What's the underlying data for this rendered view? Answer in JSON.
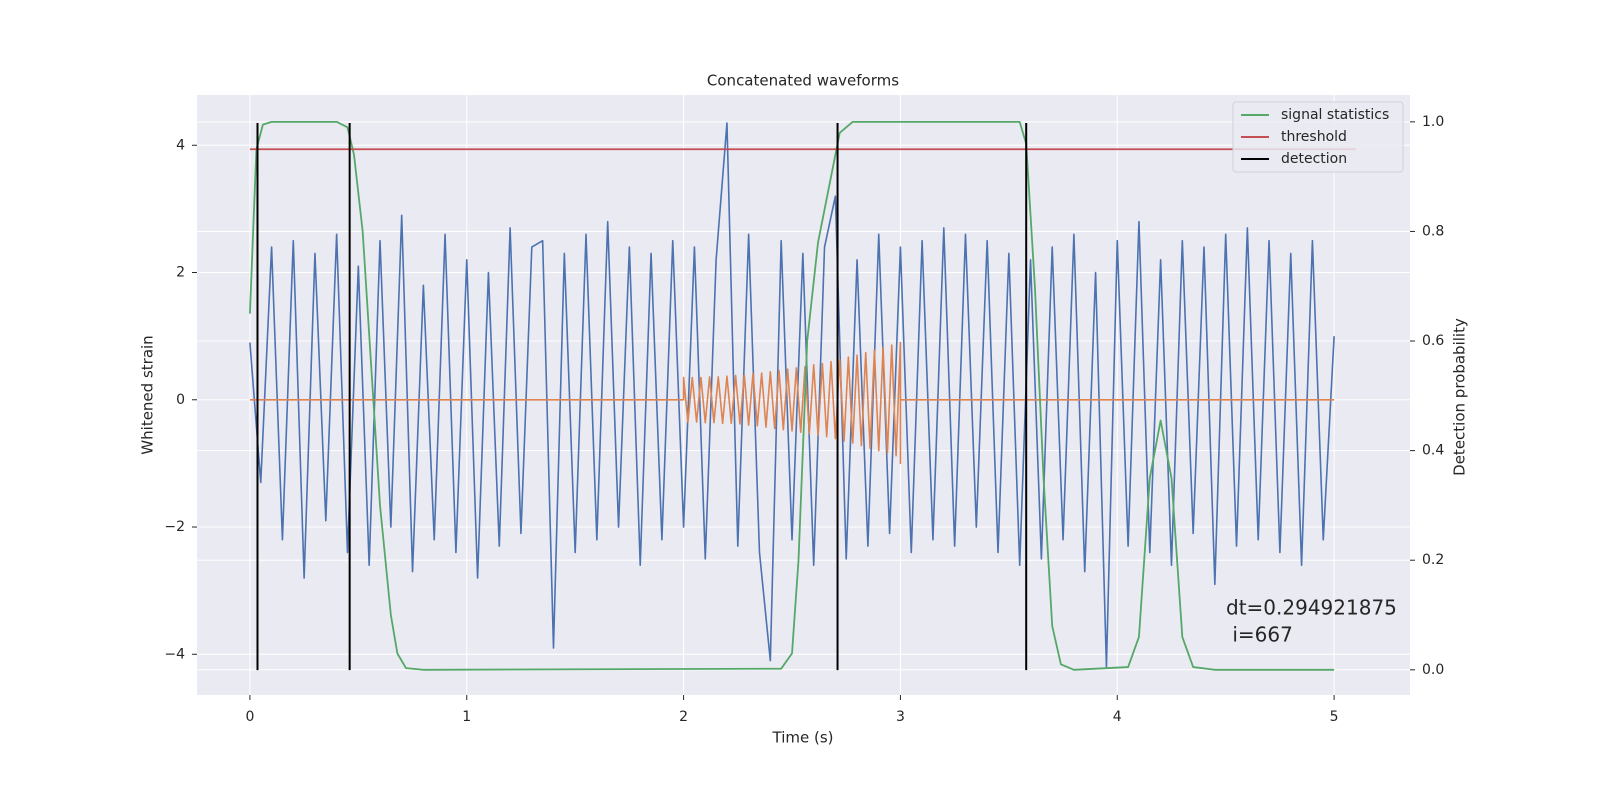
{
  "chart_data": {
    "type": "line",
    "title": "Concatenated waveforms",
    "xlabel": "Time (s)",
    "ylabel": "Whitened strain",
    "y2label": "Detection probability",
    "xlim": [
      -0.244,
      5.35
    ],
    "ylim": [
      -4.64,
      4.79
    ],
    "y2lim": [
      -0.046,
      1.049
    ],
    "xticks": [
      0,
      1,
      2,
      3,
      4,
      5
    ],
    "yticks": [
      {
        "value": -4,
        "label": "−4"
      },
      {
        "value": -2,
        "label": "−2"
      },
      0,
      2,
      4
    ],
    "y2ticks": [
      {
        "value": 0,
        "label": "0.0"
      },
      {
        "value": 0.2,
        "label": "0.2"
      },
      {
        "value": 0.4,
        "label": "0.4"
      },
      {
        "value": 0.6,
        "label": "0.6"
      },
      {
        "value": 0.8,
        "label": "0.8"
      },
      {
        "value": 1,
        "label": "1.0"
      }
    ],
    "grid": true,
    "legend": "upper right",
    "annotation": [
      "dt=0.294921875",
      " i=667"
    ],
    "series": [
      {
        "color": "#4c72b0",
        "x": [
          0,
          0.05,
          0.1,
          0.15,
          0.2,
          0.25,
          0.3,
          0.35,
          0.4,
          0.45,
          0.5,
          0.55,
          0.6,
          0.65,
          0.7,
          0.75,
          0.8,
          0.85,
          0.9,
          0.95,
          1,
          1.05,
          1.1,
          1.15,
          1.2,
          1.25,
          1.3,
          1.35,
          1.4,
          1.45,
          1.5,
          1.55,
          1.6,
          1.65,
          1.7,
          1.75,
          1.8,
          1.85,
          1.9,
          1.95,
          2,
          2.05,
          2.1,
          2.15,
          2.2,
          2.25,
          2.3,
          2.35,
          2.4,
          2.45,
          2.5,
          2.55,
          2.6,
          2.65,
          2.7,
          2.75,
          2.8,
          2.85,
          2.9,
          2.95,
          3,
          3.05,
          3.1,
          3.15,
          3.2,
          3.25,
          3.3,
          3.35,
          3.4,
          3.45,
          3.5,
          3.55,
          3.6,
          3.65,
          3.7,
          3.75,
          3.8,
          3.85,
          3.9,
          3.95,
          4,
          4.05,
          4.1,
          4.15,
          4.2,
          4.25,
          4.3,
          4.35,
          4.4,
          4.45,
          4.5,
          4.55,
          4.6,
          4.65,
          4.7,
          4.75,
          4.8,
          4.85,
          4.9,
          4.95,
          5
        ],
        "values": [
          0.9,
          -1.3,
          2.4,
          -2.2,
          2.5,
          -2.8,
          2.3,
          -1.9,
          2.6,
          -2.4,
          2.1,
          -2.6,
          2.5,
          -2.0,
          2.9,
          -2.7,
          1.8,
          -2.2,
          2.6,
          -2.4,
          2.2,
          -2.8,
          2.0,
          -2.3,
          2.7,
          -2.1,
          2.4,
          2.5,
          -3.9,
          2.3,
          -2.4,
          2.6,
          -2.2,
          2.8,
          -2.0,
          2.4,
          -2.6,
          2.3,
          -2.2,
          2.5,
          -2.0,
          2.4,
          -2.5,
          2.2,
          4.35,
          -2.3,
          2.6,
          -2.4,
          -4.1,
          2.5,
          -2.2,
          2.3,
          -2.6,
          2.4,
          3.2,
          -2.5,
          2.2,
          -2.3,
          2.6,
          -2.1,
          2.4,
          -2.4,
          2.5,
          -2.2,
          2.7,
          -2.3,
          2.6,
          -2.0,
          2.5,
          -2.4,
          2.3,
          -2.6,
          2.2,
          -2.5,
          2.4,
          -2.2,
          2.6,
          -2.7,
          2.0,
          -4.2,
          2.5,
          -2.3,
          2.8,
          -2.4,
          2.2,
          -2.6,
          2.5,
          -2.1,
          2.4,
          -2.9,
          2.6,
          -2.3,
          2.7,
          -2.2,
          2.5,
          -2.4,
          2.3,
          -2.6,
          2.5,
          -2.2,
          1.0
        ]
      },
      {
        "color": "#dd8452",
        "x": [
          0,
          2.0,
          2.0,
          2.02,
          2.04,
          2.06,
          2.08,
          2.1,
          2.12,
          2.14,
          2.16,
          2.18,
          2.2,
          2.22,
          2.24,
          2.26,
          2.28,
          2.3,
          2.32,
          2.34,
          2.36,
          2.38,
          2.4,
          2.42,
          2.44,
          2.46,
          2.48,
          2.5,
          2.52,
          2.54,
          2.56,
          2.58,
          2.6,
          2.62,
          2.64,
          2.66,
          2.68,
          2.7,
          2.72,
          2.74,
          2.76,
          2.78,
          2.8,
          2.82,
          2.84,
          2.86,
          2.88,
          2.9,
          2.92,
          2.94,
          2.96,
          2.98,
          3.0,
          3.0,
          3.0,
          5.0
        ],
        "values": [
          0,
          0,
          0.35,
          -0.35,
          0.35,
          -0.35,
          0.35,
          -0.36,
          0.36,
          -0.36,
          0.36,
          -0.37,
          0.37,
          -0.37,
          0.38,
          -0.38,
          0.39,
          -0.4,
          0.41,
          -0.41,
          0.42,
          -0.43,
          0.44,
          -0.45,
          0.46,
          -0.47,
          0.48,
          -0.49,
          0.5,
          -0.51,
          0.52,
          -0.53,
          0.55,
          -0.56,
          0.57,
          -0.58,
          0.6,
          -0.61,
          0.63,
          -0.65,
          0.67,
          -0.68,
          0.7,
          -0.72,
          0.74,
          -0.76,
          0.78,
          -0.8,
          0.82,
          -0.84,
          0.86,
          -0.88,
          0.9,
          -1.0,
          0,
          0
        ]
      },
      {
        "name": "signal statistics",
        "color": "#55a868",
        "axis": "y2",
        "x": [
          0,
          0.03,
          0.06,
          0.1,
          0.4,
          0.45,
          0.48,
          0.52,
          0.56,
          0.6,
          0.65,
          0.68,
          0.72,
          0.8,
          2.45,
          2.5,
          2.53,
          2.57,
          2.62,
          2.68,
          2.72,
          2.78,
          3.55,
          3.58,
          3.62,
          3.66,
          3.7,
          3.74,
          3.8,
          4.05,
          4.1,
          4.15,
          4.2,
          4.25,
          4.3,
          4.35,
          4.45,
          5.0
        ],
        "values": [
          0.65,
          0.95,
          0.995,
          1.0,
          1.0,
          0.99,
          0.94,
          0.8,
          0.55,
          0.3,
          0.1,
          0.03,
          0.003,
          0,
          0.002,
          0.03,
          0.2,
          0.6,
          0.78,
          0.9,
          0.98,
          1.0,
          1.0,
          0.96,
          0.7,
          0.35,
          0.08,
          0.01,
          0,
          0.005,
          0.06,
          0.35,
          0.455,
          0.35,
          0.06,
          0.005,
          0,
          0
        ]
      },
      {
        "name": "threshold",
        "color": "#c44e52",
        "axis": "y2",
        "x": [
          0,
          5.1
        ],
        "values": [
          0.95,
          0.95
        ]
      },
      {
        "name": "detection",
        "color": "#000000",
        "style": "vlines",
        "values": [
          0.035,
          0.46,
          2.71,
          3.58
        ],
        "ymin": -4.25,
        "ymax": 4.35
      }
    ]
  }
}
